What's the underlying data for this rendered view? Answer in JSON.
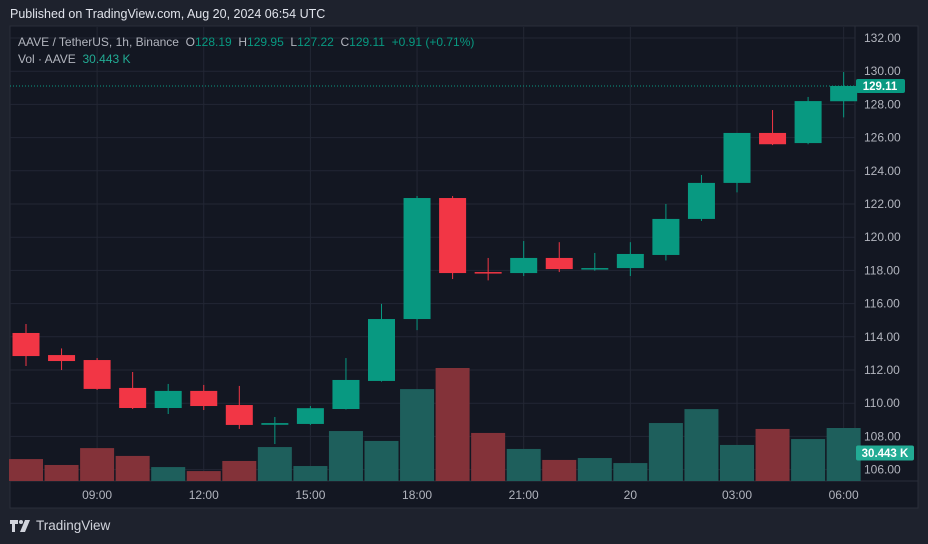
{
  "header": {
    "published": "Published on TradingView.com, Aug 20, 2024 06:54 UTC"
  },
  "legend": {
    "symbol": "AAVE / TetherUS, 1h, Binance",
    "open_label": "O",
    "open": "128.19",
    "high_label": "H",
    "high": "129.95",
    "low_label": "L",
    "low": "127.22",
    "close_label": "C",
    "close": "129.11",
    "change": "+0.91 (+0.71%)",
    "volume_label": "Vol · AAVE",
    "volume": "30.443 K"
  },
  "footer": {
    "brand": "TradingView"
  },
  "colors": {
    "up": "#089981",
    "down": "#f23645",
    "vol_up": "#1e5f5c",
    "vol_down": "#833239",
    "background": "#131722"
  },
  "chart_data": {
    "type": "candlestick",
    "price_axis": {
      "ylim": [
        105,
        133
      ],
      "ticks": [
        "132.00",
        "130.00",
        "128.00",
        "126.00",
        "124.00",
        "122.00",
        "120.00",
        "118.00",
        "116.00",
        "114.00",
        "112.00",
        "110.00",
        "108.00",
        "106.00"
      ]
    },
    "time_ticks": [
      {
        "label": "09:00",
        "index": 2
      },
      {
        "label": "12:00",
        "index": 5
      },
      {
        "label": "15:00",
        "index": 8
      },
      {
        "label": "18:00",
        "index": 11
      },
      {
        "label": "21:00",
        "index": 14
      },
      {
        "label": "20",
        "index": 17
      },
      {
        "label": "03:00",
        "index": 20
      },
      {
        "label": "06:00",
        "index": 23
      }
    ],
    "last_price_label": "129.11",
    "last_volume_label": "30.443 K",
    "volume_unit": "K",
    "candles": [
      {
        "time": "07:00",
        "o": 114.23,
        "h": 114.77,
        "l": 112.24,
        "c": 112.84,
        "v": 12.6
      },
      {
        "time": "08:00",
        "o": 112.9,
        "h": 113.3,
        "l": 112.0,
        "c": 112.54,
        "v": 9.2
      },
      {
        "time": "09:00",
        "o": 112.6,
        "h": 112.72,
        "l": 110.8,
        "c": 110.86,
        "v": 18.9
      },
      {
        "time": "10:00",
        "o": 110.92,
        "h": 111.88,
        "l": 109.65,
        "c": 109.71,
        "v": 14.4
      },
      {
        "time": "11:00",
        "o": 109.71,
        "h": 111.16,
        "l": 109.35,
        "c": 110.74,
        "v": 8.0
      },
      {
        "time": "12:00",
        "o": 110.74,
        "h": 111.1,
        "l": 109.59,
        "c": 109.83,
        "v": 5.7
      },
      {
        "time": "13:00",
        "o": 109.89,
        "h": 111.04,
        "l": 108.45,
        "c": 108.69,
        "v": 11.5
      },
      {
        "time": "14:00",
        "o": 108.7,
        "h": 109.17,
        "l": 107.54,
        "c": 108.8,
        "v": 19.5
      },
      {
        "time": "15:00",
        "o": 108.75,
        "h": 109.83,
        "l": 108.69,
        "c": 109.7,
        "v": 8.6
      },
      {
        "time": "16:00",
        "o": 109.65,
        "h": 112.72,
        "l": 109.62,
        "c": 111.4,
        "v": 28.7
      },
      {
        "time": "17:00",
        "o": 111.34,
        "h": 115.98,
        "l": 111.3,
        "c": 115.07,
        "v": 23.0
      },
      {
        "time": "18:00",
        "o": 115.07,
        "h": 122.48,
        "l": 114.4,
        "c": 122.36,
        "v": 52.8
      },
      {
        "time": "19:00",
        "o": 122.36,
        "h": 122.48,
        "l": 117.48,
        "c": 117.84,
        "v": 64.9
      },
      {
        "time": "20:00",
        "o": 117.9,
        "h": 118.75,
        "l": 117.4,
        "c": 117.84,
        "v": 27.6
      },
      {
        "time": "21:00",
        "o": 117.84,
        "h": 119.77,
        "l": 117.66,
        "c": 118.75,
        "v": 18.4
      },
      {
        "time": "22:00",
        "o": 118.75,
        "h": 119.7,
        "l": 117.9,
        "c": 118.08,
        "v": 12.1
      },
      {
        "time": "23:00",
        "o": 118.08,
        "h": 119.05,
        "l": 117.98,
        "c": 118.14,
        "v": 13.2
      },
      {
        "time": "00:00",
        "o": 118.14,
        "h": 119.7,
        "l": 117.66,
        "c": 118.99,
        "v": 10.3
      },
      {
        "time": "01:00",
        "o": 118.93,
        "h": 122.0,
        "l": 118.6,
        "c": 121.1,
        "v": 33.3
      },
      {
        "time": "02:00",
        "o": 121.1,
        "h": 123.75,
        "l": 120.98,
        "c": 123.27,
        "v": 41.3
      },
      {
        "time": "03:00",
        "o": 123.27,
        "h": 126.28,
        "l": 122.7,
        "c": 126.28,
        "v": 20.7
      },
      {
        "time": "04:00",
        "o": 126.28,
        "h": 127.66,
        "l": 125.55,
        "c": 125.6,
        "v": 29.9
      },
      {
        "time": "05:00",
        "o": 125.67,
        "h": 128.45,
        "l": 125.6,
        "c": 128.2,
        "v": 24.1
      },
      {
        "time": "06:00",
        "o": 128.19,
        "h": 129.95,
        "l": 127.22,
        "c": 129.11,
        "v": 30.443
      }
    ]
  }
}
